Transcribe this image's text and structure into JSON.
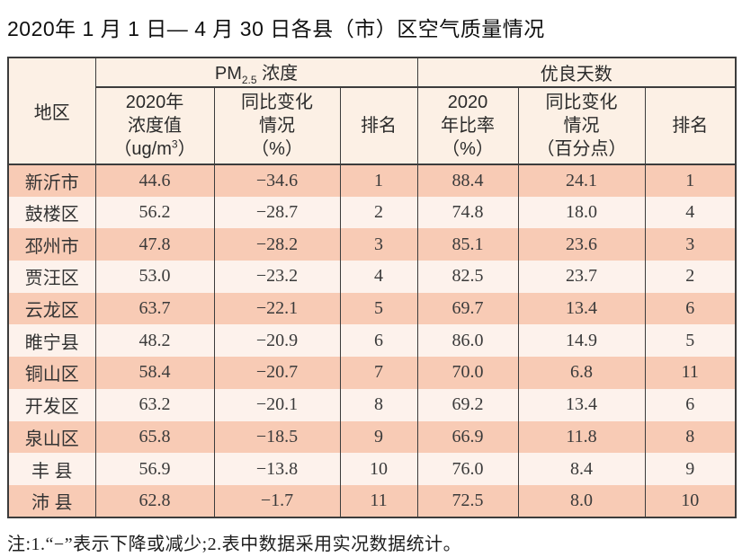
{
  "page": {
    "title": "2020年 1 月 1 日— 4 月 30 日各县（市）区空气质量情况",
    "footnote": "注:1.“−”表示下降或减少;2.表中数据采用实况数据统计。"
  },
  "colors": {
    "row_odd_bg": "#f8cbb5",
    "row_even_bg": "#fdf2ec",
    "header_bg": "#fcf0e5",
    "border": "#3c3c3c",
    "text": "#262626"
  },
  "table": {
    "header": {
      "region": "地区",
      "pm_group": {
        "prefix": "PM",
        "sub": "2.5",
        "suffix": " 浓度"
      },
      "good_days_group": "优良天数",
      "pm_value": {
        "line1": "2020年",
        "line2": "浓度值",
        "line3_pre": "（ug/m",
        "line3_sup": "3",
        "line3_post": "）"
      },
      "pm_yoy": {
        "line1": "同比变化",
        "line2": "情况",
        "line3": "（%）"
      },
      "pm_rank": "排名",
      "days_ratio": {
        "line1": "2020",
        "line2": "年比率",
        "line3": "（%）"
      },
      "days_yoy": {
        "line1": "同比变化",
        "line2": "情况",
        "line3": "（百分点）"
      },
      "days_rank": "排名"
    },
    "rows": [
      {
        "region": "新沂市",
        "pm_value": "44.6",
        "pm_yoy": "−34.6",
        "pm_rank": "1",
        "days_ratio": "88.4",
        "days_yoy": "24.1",
        "days_rank": "1"
      },
      {
        "region": "鼓楼区",
        "pm_value": "56.2",
        "pm_yoy": "−28.7",
        "pm_rank": "2",
        "days_ratio": "74.8",
        "days_yoy": "18.0",
        "days_rank": "4"
      },
      {
        "region": "邳州市",
        "pm_value": "47.8",
        "pm_yoy": "−28.2",
        "pm_rank": "3",
        "days_ratio": "85.1",
        "days_yoy": "23.6",
        "days_rank": "3"
      },
      {
        "region": "贾汪区",
        "pm_value": "53.0",
        "pm_yoy": "−23.2",
        "pm_rank": "4",
        "days_ratio": "82.5",
        "days_yoy": "23.7",
        "days_rank": "2"
      },
      {
        "region": "云龙区",
        "pm_value": "63.7",
        "pm_yoy": "−22.1",
        "pm_rank": "5",
        "days_ratio": "69.7",
        "days_yoy": "13.4",
        "days_rank": "6"
      },
      {
        "region": "睢宁县",
        "pm_value": "48.2",
        "pm_yoy": "−20.9",
        "pm_rank": "6",
        "days_ratio": "86.0",
        "days_yoy": "14.9",
        "days_rank": "5"
      },
      {
        "region": "铜山区",
        "pm_value": "58.4",
        "pm_yoy": "−20.7",
        "pm_rank": "7",
        "days_ratio": "70.0",
        "days_yoy": "6.8",
        "days_rank": "11"
      },
      {
        "region": "开发区",
        "pm_value": "63.2",
        "pm_yoy": "−20.1",
        "pm_rank": "8",
        "days_ratio": "69.2",
        "days_yoy": "13.4",
        "days_rank": "6"
      },
      {
        "region": "泉山区",
        "pm_value": "65.8",
        "pm_yoy": "−18.5",
        "pm_rank": "9",
        "days_ratio": "66.9",
        "days_yoy": "11.8",
        "days_rank": "8"
      },
      {
        "region": "丰 县",
        "pm_value": "56.9",
        "pm_yoy": "−13.8",
        "pm_rank": "10",
        "days_ratio": "76.0",
        "days_yoy": "8.4",
        "days_rank": "9"
      },
      {
        "region": "沛 县",
        "pm_value": "62.8",
        "pm_yoy": "−1.7",
        "pm_rank": "11",
        "days_ratio": "72.5",
        "days_yoy": "8.0",
        "days_rank": "10"
      }
    ]
  }
}
